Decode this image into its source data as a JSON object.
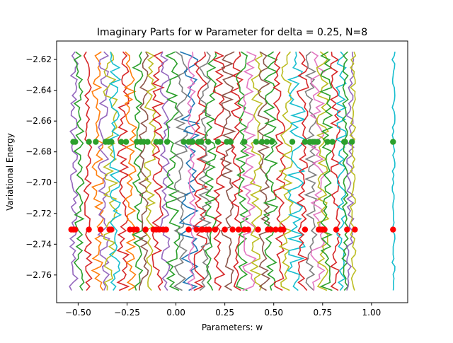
{
  "chart_data": {
    "type": "scatter",
    "title": "Imaginary Parts for w Parameter for delta = 0.25, N=8",
    "xlabel": "Parameters: w",
    "ylabel": "Variational Energy",
    "xlim": [
      -0.61,
      1.185
    ],
    "ylim": [
      -2.778,
      -2.608
    ],
    "x_ticks": [
      -0.5,
      -0.25,
      0.0,
      0.25,
      0.5,
      0.75,
      1.0
    ],
    "x_tick_labels": [
      "−0.50",
      "−0.25",
      "0.00",
      "0.25",
      "0.50",
      "0.75",
      "1.00"
    ],
    "y_ticks": [
      -2.62,
      -2.64,
      -2.66,
      -2.68,
      -2.7,
      -2.72,
      -2.74,
      -2.76
    ],
    "y_tick_labels": [
      "−2.62",
      "−2.64",
      "−2.66",
      "−2.68",
      "−2.70",
      "−2.72",
      "−2.74",
      "−2.76"
    ],
    "grid": false,
    "legend": "none",
    "line_series": {
      "description_free_note": "",
      "y_range": [
        -2.77,
        -2.615
      ],
      "colors": [
        "#1f77b4",
        "#ff7f0e",
        "#2ca02c",
        "#d62728",
        "#9467bd",
        "#8c564b",
        "#e377c2",
        "#7f7f7f",
        "#bcbd22",
        "#17becf"
      ],
      "bands": [
        {
          "x_min": -0.545,
          "x_max": -0.5,
          "color": "#9467bd"
        },
        {
          "x_min": -0.52,
          "x_max": -0.47,
          "color": "#2ca02c"
        },
        {
          "x_min": -0.47,
          "x_max": -0.43,
          "color": "#d62728"
        },
        {
          "x_min": -0.43,
          "x_max": -0.37,
          "color": "#ff7f0e"
        },
        {
          "x_min": -0.4,
          "x_max": -0.34,
          "color": "#9467bd"
        },
        {
          "x_min": -0.37,
          "x_max": -0.3,
          "color": "#bcbd22"
        },
        {
          "x_min": -0.34,
          "x_max": -0.28,
          "color": "#17becf"
        },
        {
          "x_min": -0.3,
          "x_max": -0.24,
          "color": "#d62728"
        },
        {
          "x_min": -0.26,
          "x_max": -0.2,
          "color": "#ff7f0e"
        },
        {
          "x_min": -0.22,
          "x_max": -0.17,
          "color": "#2ca02c"
        },
        {
          "x_min": -0.19,
          "x_max": -0.14,
          "color": "#8c564b"
        },
        {
          "x_min": -0.16,
          "x_max": -0.1,
          "color": "#bcbd22"
        },
        {
          "x_min": -0.12,
          "x_max": -0.06,
          "color": "#d62728"
        },
        {
          "x_min": -0.08,
          "x_max": -0.03,
          "color": "#9467bd"
        },
        {
          "x_min": -0.05,
          "x_max": 0.02,
          "color": "#2ca02c"
        },
        {
          "x_min": -0.01,
          "x_max": 0.06,
          "color": "#7f7f7f"
        },
        {
          "x_min": 0.02,
          "x_max": 0.12,
          "color": "#1f77b4"
        },
        {
          "x_min": 0.06,
          "x_max": 0.1,
          "color": "#e377c2"
        },
        {
          "x_min": 0.09,
          "x_max": 0.16,
          "color": "#d62728"
        },
        {
          "x_min": 0.12,
          "x_max": 0.18,
          "color": "#7f7f7f"
        },
        {
          "x_min": 0.15,
          "x_max": 0.21,
          "color": "#2ca02c"
        },
        {
          "x_min": 0.19,
          "x_max": 0.25,
          "color": "#d62728"
        },
        {
          "x_min": 0.23,
          "x_max": 0.3,
          "color": "#8c564b"
        },
        {
          "x_min": 0.28,
          "x_max": 0.34,
          "color": "#d62728"
        },
        {
          "x_min": 0.31,
          "x_max": 0.37,
          "color": "#2ca02c"
        },
        {
          "x_min": 0.34,
          "x_max": 0.41,
          "color": "#e377c2"
        },
        {
          "x_min": 0.38,
          "x_max": 0.44,
          "color": "#bcbd22"
        },
        {
          "x_min": 0.42,
          "x_max": 0.48,
          "color": "#8c564b"
        },
        {
          "x_min": 0.45,
          "x_max": 0.52,
          "color": "#2ca02c"
        },
        {
          "x_min": 0.5,
          "x_max": 0.56,
          "color": "#d62728"
        },
        {
          "x_min": 0.53,
          "x_max": 0.6,
          "color": "#bcbd22"
        },
        {
          "x_min": 0.57,
          "x_max": 0.66,
          "color": "#17becf"
        },
        {
          "x_min": 0.62,
          "x_max": 0.68,
          "color": "#d62728"
        },
        {
          "x_min": 0.66,
          "x_max": 0.72,
          "color": "#7f7f7f"
        },
        {
          "x_min": 0.69,
          "x_max": 0.76,
          "color": "#e377c2"
        },
        {
          "x_min": 0.72,
          "x_max": 0.78,
          "color": "#bcbd22"
        },
        {
          "x_min": 0.74,
          "x_max": 0.8,
          "color": "#2ca02c"
        },
        {
          "x_min": 0.79,
          "x_max": 0.84,
          "color": "#d62728"
        },
        {
          "x_min": 0.82,
          "x_max": 0.87,
          "color": "#17becf"
        },
        {
          "x_min": 0.85,
          "x_max": 0.88,
          "color": "#2ca02c"
        },
        {
          "x_min": 0.87,
          "x_max": 0.91,
          "color": "#9467bd"
        },
        {
          "x_min": 0.89,
          "x_max": 0.92,
          "color": "#bcbd22"
        },
        {
          "x_min": 1.105,
          "x_max": 1.12,
          "color": "#17becf"
        }
      ]
    },
    "series": [
      {
        "color": "#2ca02c",
        "y": -2.6735,
        "x": [
          -0.525,
          -0.515,
          -0.445,
          -0.41,
          -0.36,
          -0.345,
          -0.33,
          -0.28,
          -0.255,
          -0.2,
          -0.18,
          -0.165,
          -0.145,
          -0.1,
          -0.08,
          -0.045,
          0.04,
          0.065,
          0.075,
          0.085,
          0.115,
          0.13,
          0.165,
          0.215,
          0.26,
          0.28,
          0.35,
          0.41,
          0.44,
          0.465,
          0.49,
          0.595,
          0.66,
          0.685,
          0.7,
          0.71,
          0.725,
          0.775,
          0.8,
          0.86,
          0.865,
          0.9,
          1.11
        ]
      },
      {
        "color": "#ff0000",
        "y": -2.7305,
        "x": [
          -0.535,
          -0.525,
          -0.515,
          -0.445,
          -0.385,
          -0.34,
          -0.33,
          -0.235,
          -0.215,
          -0.2,
          -0.155,
          -0.115,
          -0.1,
          -0.085,
          -0.065,
          -0.05,
          0.065,
          0.105,
          0.13,
          0.135,
          0.155,
          0.17,
          0.2,
          0.25,
          0.29,
          0.32,
          0.35,
          0.37,
          0.42,
          0.47,
          0.485,
          0.51,
          0.535,
          0.55,
          0.66,
          0.73,
          0.74,
          0.75,
          0.76,
          0.82,
          0.875,
          0.915,
          1.11
        ]
      }
    ]
  }
}
